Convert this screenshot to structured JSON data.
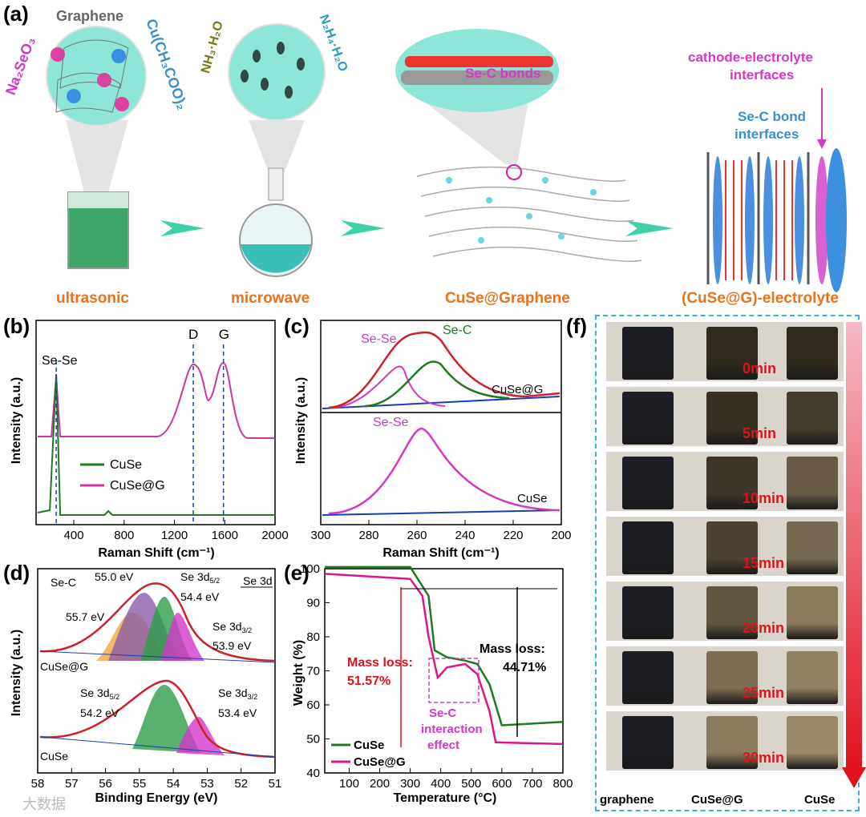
{
  "panel_a": {
    "label": "(a)",
    "reagents": {
      "na2seo3": "Na₂SeO₃",
      "graphene": "Graphene",
      "cu_acetate": "Cu(CH₃COO)₂",
      "nh3": "NH₃·H₂O",
      "n2h4": "N₂H₄·H₂O"
    },
    "steps": [
      "ultrasonic",
      "microwave",
      "CuSe@Graphene",
      "(CuSe@G)-electrolyte"
    ],
    "annotations": {
      "sec_bonds": "Se-C bonds",
      "cathode": "cathode-electrolyte",
      "interfaces": "interfaces",
      "sec_bond": "Se-C bond",
      "sec_interfaces": "interfaces"
    },
    "colors": {
      "step_text": "#e9731c",
      "arrow": "#3fd0a8",
      "magenta": "#d238c8",
      "blue": "#3a8fd1"
    }
  },
  "panel_b": {
    "label": "(b)",
    "chart_data": {
      "type": "line",
      "xlabel": "Raman Shift (cm⁻¹)",
      "ylabel": "Intensity (a.u.)",
      "xlim": [
        100,
        2000
      ],
      "xticks": [
        "400",
        "800",
        "1200",
        "1600",
        "2000"
      ],
      "series": [
        {
          "name": "CuSe",
          "color": "#1f7a1f"
        },
        {
          "name": "CuSe@G",
          "color": "#d0359e"
        }
      ],
      "annotations": [
        "Se-Se",
        "D",
        "G"
      ],
      "peaks": {
        "Se-Se": 260,
        "D": 1350,
        "G": 1590
      }
    }
  },
  "panel_c": {
    "label": "(c)",
    "chart_data": {
      "type": "line",
      "xlabel": "Raman Shift (cm⁻¹)",
      "ylabel": "Intensity (a.u.)",
      "xlim": [
        300,
        200
      ],
      "xticks": [
        "300",
        "280",
        "260",
        "240",
        "220",
        "200"
      ],
      "series": [
        {
          "name": "CuSe@G"
        },
        {
          "name": "CuSe"
        }
      ],
      "annotations": [
        "Se-Se",
        "Se-C",
        "Se-Se"
      ],
      "peaks": {
        "CuSe@G Se-Se": 266,
        "CuSe@G Se-C": 254,
        "CuSe Se-Se": 259
      }
    }
  },
  "panel_d": {
    "label": "(d)",
    "chart_data": {
      "type": "line",
      "xlabel": "Binding Energy (eV)",
      "ylabel": "Intensity (a.u.)",
      "xlim": [
        58,
        51
      ],
      "xticks": [
        "58",
        "57",
        "56",
        "55",
        "54",
        "53",
        "52",
        "51"
      ],
      "series": [
        {
          "name": "CuSe@G"
        },
        {
          "name": "CuSe"
        }
      ],
      "legend": "Se 3d",
      "annotations": {
        "sec": "Se-C",
        "e550": "55.0 eV",
        "s52a": "Se 3d",
        "e544": "54.4 eV",
        "e557": "55.7 eV",
        "s32a": "Se 3d",
        "e539": "53.9 eV",
        "s52b": "Se 3d",
        "e542": "54.2 eV",
        "s32b": "Se 3d",
        "e534": "53.4 eV"
      },
      "subs": {
        "f52": "5/2",
        "f32": "3/2"
      }
    }
  },
  "panel_e": {
    "label": "(e)",
    "chart_data": {
      "type": "line",
      "xlabel": "Temperature (°C)",
      "ylabel": "Weight (%)",
      "xlim": [
        20,
        800
      ],
      "ylim": [
        40,
        100
      ],
      "xticks": [
        "100",
        "200",
        "300",
        "400",
        "500",
        "600",
        "700",
        "800"
      ],
      "yticks": [
        "40",
        "50",
        "60",
        "70",
        "80",
        "90",
        "100"
      ],
      "series": [
        {
          "name": "CuSe",
          "color": "#1f7a1f",
          "x": [
            20,
            300,
            360,
            380,
            420,
            480,
            520,
            560,
            600,
            800
          ],
          "y": [
            100.5,
            100.5,
            92,
            76,
            74,
            73,
            72,
            66,
            54,
            55
          ]
        },
        {
          "name": "CuSe@G",
          "color": "#e0148a",
          "x": [
            20,
            300,
            340,
            360,
            390,
            420,
            480,
            520,
            560,
            580,
            800
          ],
          "y": [
            98.5,
            97,
            92,
            80,
            68,
            71,
            72,
            69,
            58,
            49,
            48.5
          ]
        }
      ],
      "annotations": {
        "ml1a": "Mass loss:",
        "ml1b": "51.57%",
        "ml2a": "Mass loss:",
        "ml2b": "44.71%",
        "ia": "Se-C",
        "ib": "interaction",
        "ic": "effect"
      }
    }
  },
  "panel_f": {
    "label": "(f)",
    "times": [
      "0min",
      "5min",
      "10min",
      "15min",
      "20min",
      "25min",
      "30min"
    ],
    "samples": [
      "graphene",
      "CuSe@G",
      "CuSe"
    ]
  },
  "watermark": "大数据"
}
